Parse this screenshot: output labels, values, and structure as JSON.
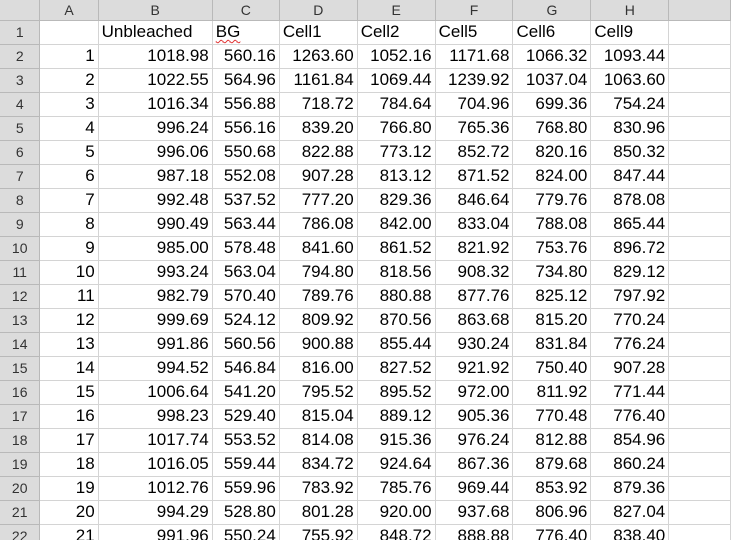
{
  "column_letters": [
    "A",
    "B",
    "C",
    "D",
    "E",
    "F",
    "G",
    "H"
  ],
  "header_row": [
    "",
    "Unbleached",
    "BG",
    "Cell1",
    "Cell2",
    "Cell5",
    "Cell6",
    "Cell9"
  ],
  "spellcheck_flagged_column": 2,
  "rows": [
    [
      "1",
      "1018.98",
      "560.16",
      "1263.60",
      "1052.16",
      "1171.68",
      "1066.32",
      "1093.44"
    ],
    [
      "2",
      "1022.55",
      "564.96",
      "1161.84",
      "1069.44",
      "1239.92",
      "1037.04",
      "1063.60"
    ],
    [
      "3",
      "1016.34",
      "556.88",
      "718.72",
      "784.64",
      "704.96",
      "699.36",
      "754.24"
    ],
    [
      "4",
      "996.24",
      "556.16",
      "839.20",
      "766.80",
      "765.36",
      "768.80",
      "830.96"
    ],
    [
      "5",
      "996.06",
      "550.68",
      "822.88",
      "773.12",
      "852.72",
      "820.16",
      "850.32"
    ],
    [
      "6",
      "987.18",
      "552.08",
      "907.28",
      "813.12",
      "871.52",
      "824.00",
      "847.44"
    ],
    [
      "7",
      "992.48",
      "537.52",
      "777.20",
      "829.36",
      "846.64",
      "779.76",
      "878.08"
    ],
    [
      "8",
      "990.49",
      "563.44",
      "786.08",
      "842.00",
      "833.04",
      "788.08",
      "865.44"
    ],
    [
      "9",
      "985.00",
      "578.48",
      "841.60",
      "861.52",
      "821.92",
      "753.76",
      "896.72"
    ],
    [
      "10",
      "993.24",
      "563.04",
      "794.80",
      "818.56",
      "908.32",
      "734.80",
      "829.12"
    ],
    [
      "11",
      "982.79",
      "570.40",
      "789.76",
      "880.88",
      "877.76",
      "825.12",
      "797.92"
    ],
    [
      "12",
      "999.69",
      "524.12",
      "809.92",
      "870.56",
      "863.68",
      "815.20",
      "770.24"
    ],
    [
      "13",
      "991.86",
      "560.56",
      "900.88",
      "855.44",
      "930.24",
      "831.84",
      "776.24"
    ],
    [
      "14",
      "994.52",
      "546.84",
      "816.00",
      "827.52",
      "921.92",
      "750.40",
      "907.28"
    ],
    [
      "15",
      "1006.64",
      "541.20",
      "795.52",
      "895.52",
      "972.00",
      "811.92",
      "771.44"
    ],
    [
      "16",
      "998.23",
      "529.40",
      "815.04",
      "889.12",
      "905.36",
      "770.48",
      "776.40"
    ],
    [
      "17",
      "1017.74",
      "553.52",
      "814.08",
      "915.36",
      "976.24",
      "812.88",
      "854.96"
    ],
    [
      "18",
      "1016.05",
      "559.44",
      "834.72",
      "924.64",
      "867.36",
      "879.68",
      "860.24"
    ],
    [
      "19",
      "1012.76",
      "559.96",
      "783.92",
      "785.76",
      "969.44",
      "853.92",
      "879.36"
    ],
    [
      "20",
      "994.29",
      "528.80",
      "801.28",
      "920.00",
      "937.68",
      "806.96",
      "827.04"
    ],
    [
      "21",
      "991.96",
      "550.24",
      "755.92",
      "848.72",
      "888.88",
      "776.40",
      "838.40"
    ]
  ]
}
